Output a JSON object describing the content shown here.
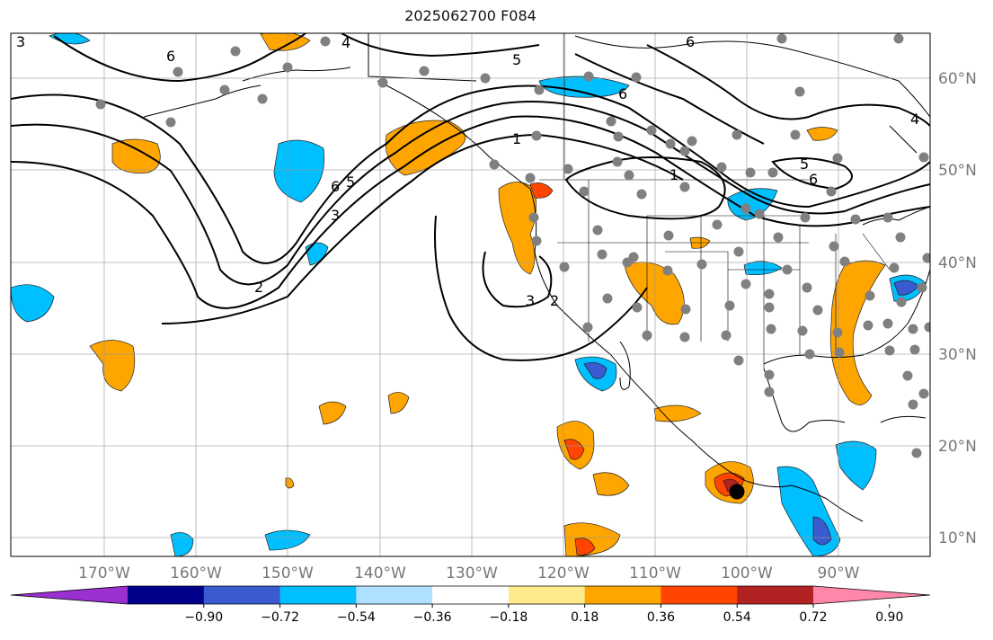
{
  "title": "2025062700 F084",
  "lon_labels": [
    "170°W",
    "160°W",
    "150°W",
    "140°W",
    "130°W",
    "120°W",
    "110°W",
    "100°W",
    "90°W"
  ],
  "lat_labels": [
    "60°N",
    "50°N",
    "40°N",
    "30°N",
    "20°N",
    "10°N"
  ],
  "colorbar": {
    "colors": [
      "#9b30d0",
      "#00008b",
      "#3a5bd0",
      "#00bfff",
      "#b0e0ff",
      "#ffffff",
      "#ffeb8a",
      "#ffa500",
      "#ff4500",
      "#b22222",
      "#ff88aa"
    ],
    "labels": [
      "−0.90",
      "−0.72",
      "−0.54",
      "−0.36",
      "−0.18",
      "0.18",
      "0.36",
      "0.54",
      "0.72",
      "0.90"
    ]
  },
  "contour_labels": [
    "6",
    "4",
    "5",
    "6",
    "6",
    "4",
    "5",
    "1",
    "1",
    "6",
    "5",
    "6",
    "3",
    "2",
    "3",
    "2",
    "3"
  ]
}
